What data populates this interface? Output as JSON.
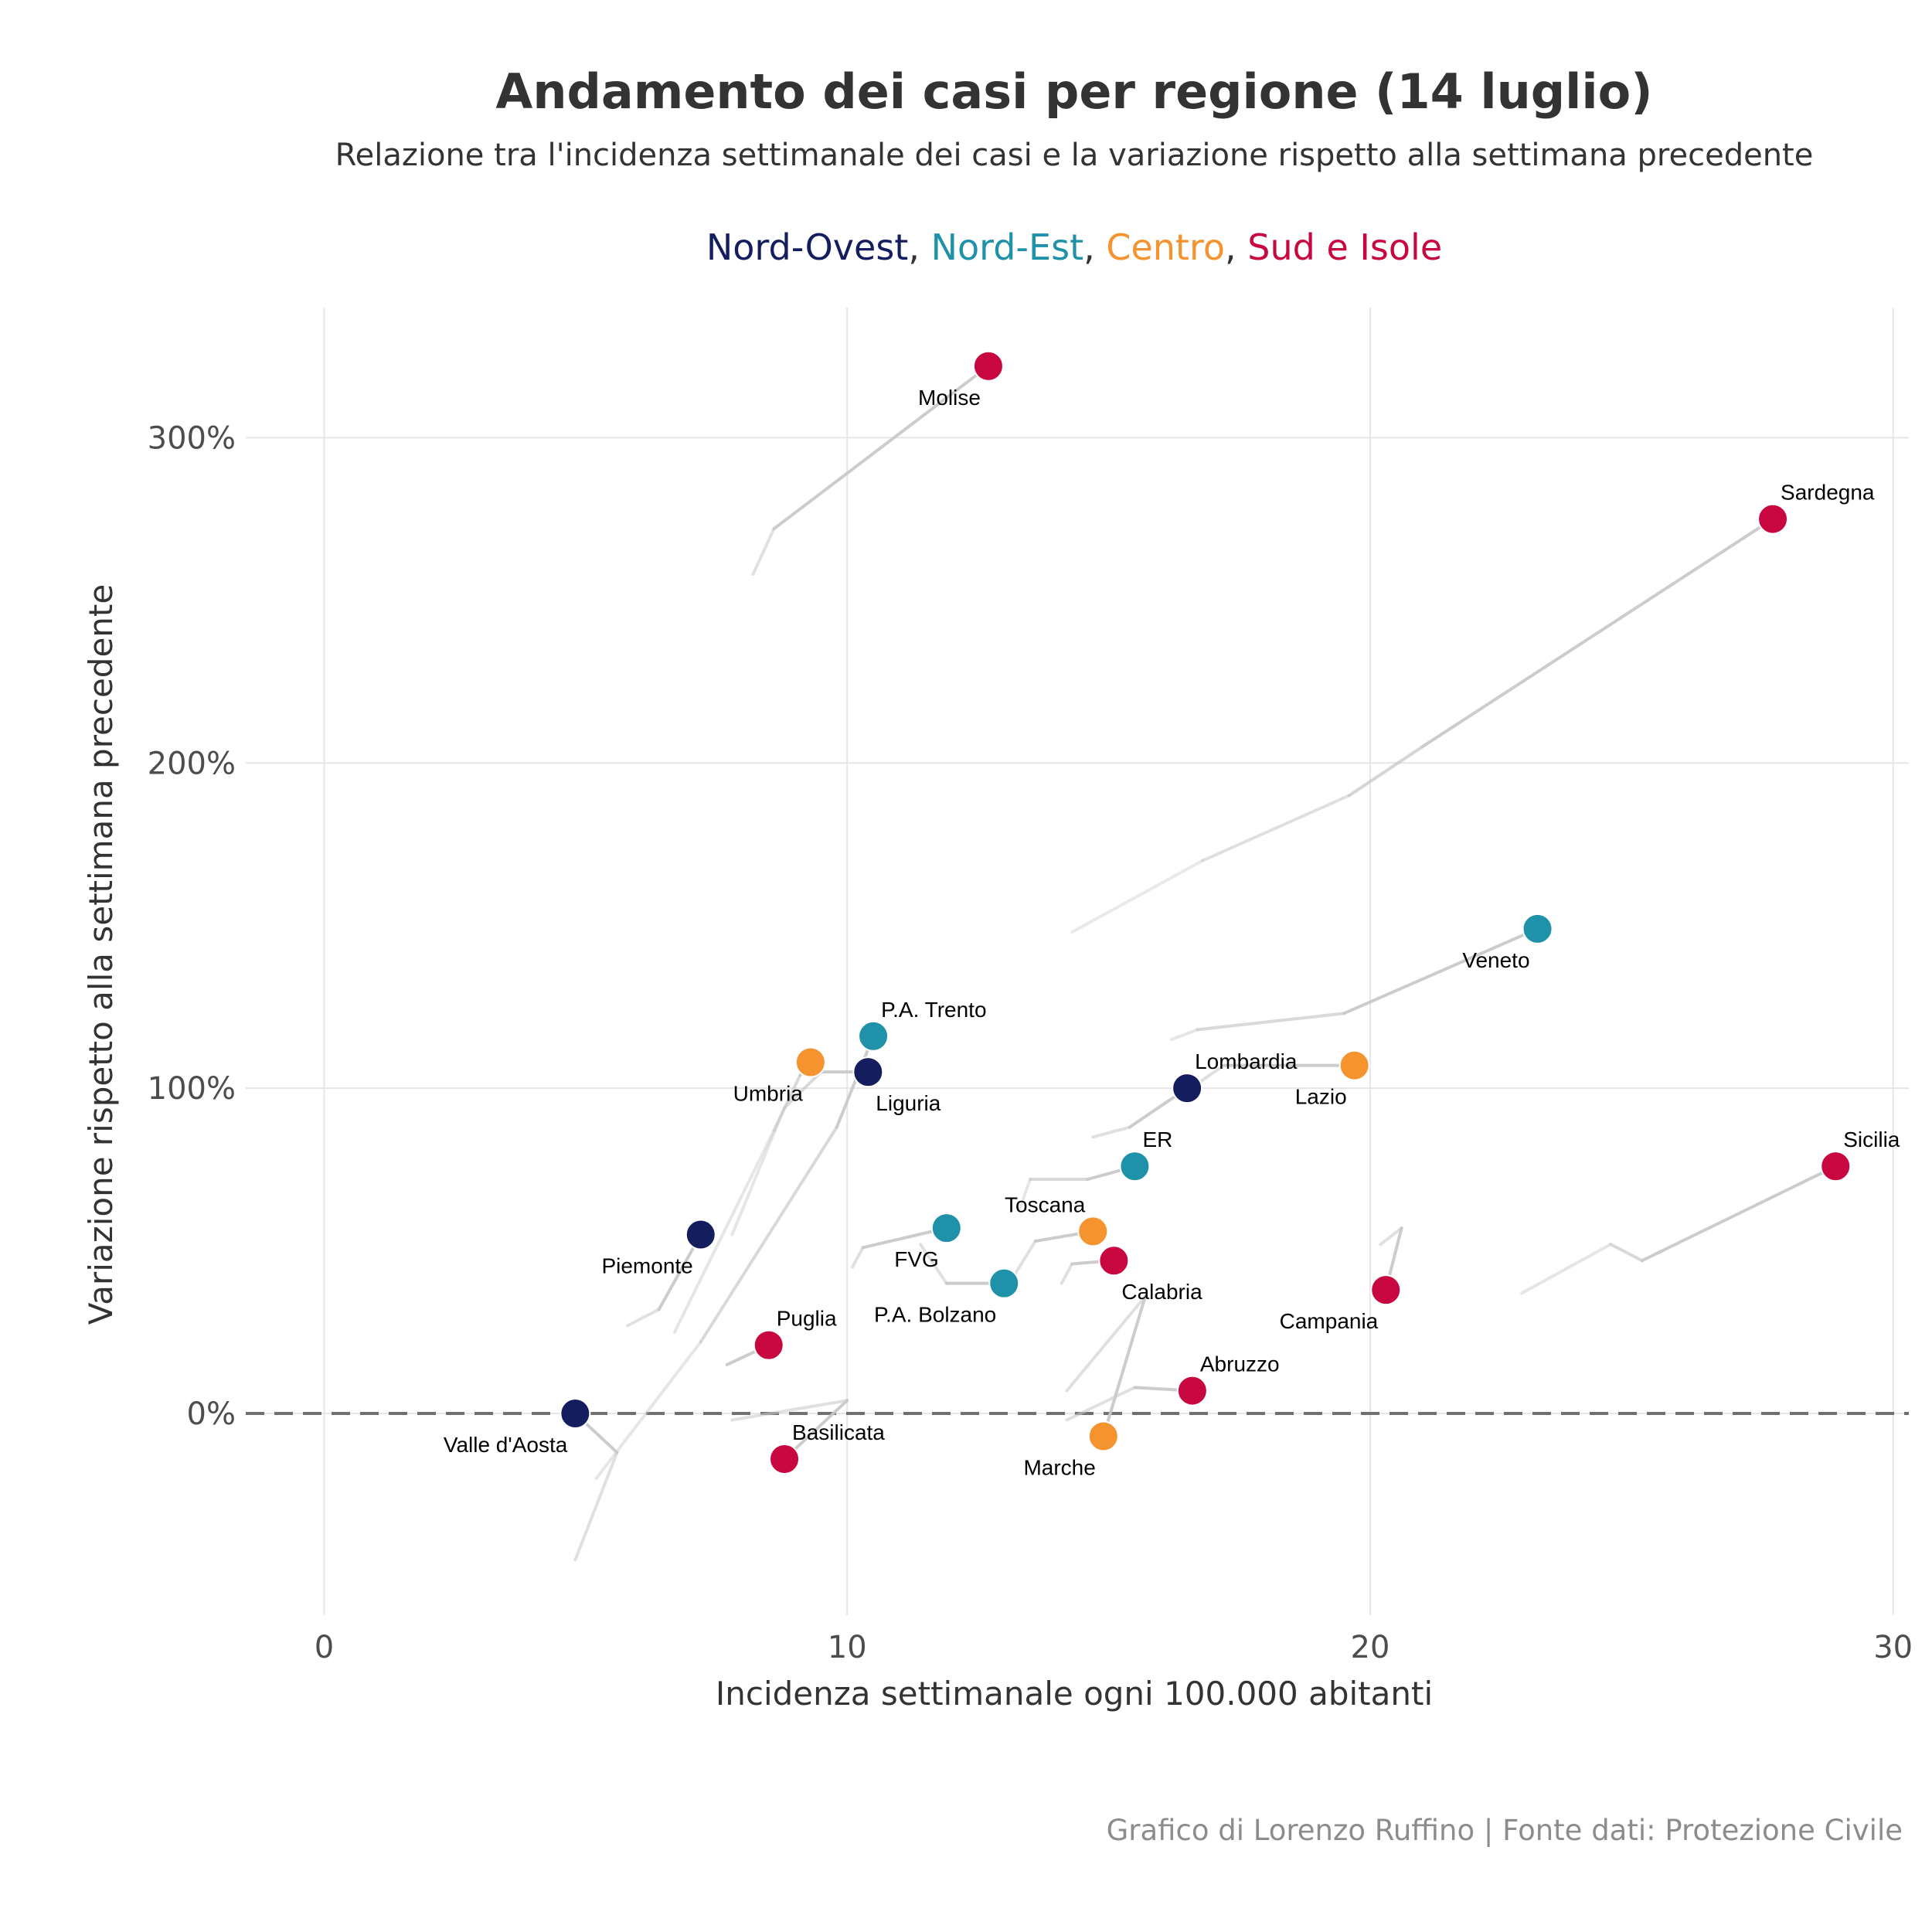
{
  "chart_data": {
    "type": "scatter",
    "title": "Andamento dei casi per regione (14 luglio)",
    "subtitle": "Relazione tra l'incidenza settimanale dei casi e la variazione rispetto alla settimana precedente",
    "legend": {
      "placement": "top",
      "separator": ",",
      "entries": [
        {
          "name": "Nord-Ovest",
          "color": "#141e5e"
        },
        {
          "name": "Nord-Est",
          "color": "#1f91a8"
        },
        {
          "name": "Centro",
          "color": "#f5932e"
        },
        {
          "name": "Sud e Isole",
          "color": "#c8063f"
        }
      ]
    },
    "xlabel": "Incidenza settimanale ogni 100.000 abitanti",
    "ylabel": "Variazione rispetto alla settimana precedente",
    "xlim": [
      -1.5,
      30.3
    ],
    "ylim": [
      -62,
      340
    ],
    "xticks": [
      0,
      10,
      20,
      30
    ],
    "xtick_labels": [
      "0",
      "10",
      "20",
      "30"
    ],
    "yticks": [
      0,
      100,
      200,
      300
    ],
    "ytick_labels": [
      "0%",
      "100%",
      "200%",
      "300%"
    ],
    "grid": true,
    "reference_line": {
      "y": 0,
      "style": "dashed",
      "color": "#707070"
    },
    "caption": "Grafico di Lorenzo Ruffino | Fonte dati: Protezione Civile",
    "points": [
      {
        "name": "Molise",
        "x": 12.7,
        "y": 322,
        "region": "Sud e Isole",
        "label_pos": "below-left"
      },
      {
        "name": "Sardegna",
        "x": 27.7,
        "y": 275,
        "region": "Sud e Isole",
        "label_pos": "above-right"
      },
      {
        "name": "Veneto",
        "x": 23.2,
        "y": 149,
        "region": "Nord-Est",
        "label_pos": "below-left"
      },
      {
        "name": "P.A. Trento",
        "x": 10.5,
        "y": 116,
        "region": "Nord-Est",
        "label_pos": "above-right"
      },
      {
        "name": "Umbria",
        "x": 9.3,
        "y": 108,
        "region": "Centro",
        "label_pos": "below-left"
      },
      {
        "name": "Lazio",
        "x": 19.7,
        "y": 107,
        "region": "Centro",
        "label_pos": "below-left"
      },
      {
        "name": "Liguria",
        "x": 10.4,
        "y": 105,
        "region": "Nord-Ovest",
        "label_pos": "below-right"
      },
      {
        "name": "Lombardia",
        "x": 16.5,
        "y": 100,
        "region": "Nord-Ovest",
        "label_pos": "above-right"
      },
      {
        "name": "Sicilia",
        "x": 28.9,
        "y": 76,
        "region": "Sud e Isole",
        "label_pos": "above-right"
      },
      {
        "name": "ER",
        "x": 15.5,
        "y": 76,
        "region": "Nord-Est",
        "label_pos": "above-right"
      },
      {
        "name": "FVG",
        "x": 11.9,
        "y": 57,
        "region": "Nord-Est",
        "label_pos": "below-left"
      },
      {
        "name": "Piemonte",
        "x": 7.2,
        "y": 55,
        "region": "Nord-Ovest",
        "label_pos": "below-left"
      },
      {
        "name": "Toscana",
        "x": 14.7,
        "y": 56,
        "region": "Centro",
        "label_pos": "above-left"
      },
      {
        "name": "Calabria",
        "x": 15.1,
        "y": 47,
        "region": "Sud e Isole",
        "label_pos": "below-right"
      },
      {
        "name": "P.A. Bolzano",
        "x": 13.0,
        "y": 40,
        "region": "Nord-Est",
        "label_pos": "below-left"
      },
      {
        "name": "Campania",
        "x": 20.3,
        "y": 38,
        "region": "Sud e Isole",
        "label_pos": "below-left"
      },
      {
        "name": "Puglia",
        "x": 8.5,
        "y": 21,
        "region": "Sud e Isole",
        "label_pos": "above-right"
      },
      {
        "name": "Abruzzo",
        "x": 16.6,
        "y": 7,
        "region": "Sud e Isole",
        "label_pos": "above-right"
      },
      {
        "name": "Valle d'Aosta",
        "x": 4.8,
        "y": 0,
        "region": "Nord-Ovest",
        "label_pos": "below-left"
      },
      {
        "name": "Marche",
        "x": 14.9,
        "y": -7,
        "region": "Centro",
        "label_pos": "below-left"
      },
      {
        "name": "Basilicata",
        "x": 8.8,
        "y": -14,
        "region": "Sud e Isole",
        "label_pos": "above-right"
      }
    ],
    "trails": [
      {
        "name": "Molise",
        "points": [
          [
            8.2,
            258
          ],
          [
            8.6,
            272
          ],
          [
            12.7,
            322
          ]
        ]
      },
      {
        "name": "Sardegna",
        "points": [
          [
            14.3,
            148
          ],
          [
            16.8,
            170
          ],
          [
            19.6,
            190
          ],
          [
            21.0,
            205
          ],
          [
            27.7,
            275
          ]
        ]
      },
      {
        "name": "Veneto",
        "points": [
          [
            16.2,
            115
          ],
          [
            16.7,
            118
          ],
          [
            19.5,
            123
          ],
          [
            23.2,
            149
          ]
        ]
      },
      {
        "name": "P.A. Trento",
        "points": [
          [
            5.2,
            -20
          ],
          [
            7.2,
            22
          ],
          [
            9.8,
            88
          ],
          [
            10.5,
            116
          ]
        ]
      },
      {
        "name": "Umbria",
        "points": [
          [
            6.7,
            25
          ],
          [
            8.6,
            87
          ],
          [
            9.1,
            104
          ],
          [
            9.3,
            108
          ]
        ]
      },
      {
        "name": "Lazio",
        "points": [
          [
            16.3,
            97
          ],
          [
            17.2,
            107
          ],
          [
            19.7,
            107
          ]
        ]
      },
      {
        "name": "Liguria",
        "points": [
          [
            7.8,
            55
          ],
          [
            8.8,
            94
          ],
          [
            9.5,
            105
          ],
          [
            10.4,
            105
          ]
        ]
      },
      {
        "name": "Lombardia",
        "points": [
          [
            14.7,
            85
          ],
          [
            15.4,
            88
          ],
          [
            16.5,
            100
          ]
        ]
      },
      {
        "name": "Sicilia",
        "points": [
          [
            22.9,
            37
          ],
          [
            24.6,
            52
          ],
          [
            25.2,
            47
          ],
          [
            28.9,
            76
          ]
        ]
      },
      {
        "name": "ER",
        "points": [
          [
            13.3,
            63
          ],
          [
            13.5,
            72
          ],
          [
            14.6,
            72
          ],
          [
            15.5,
            76
          ]
        ]
      },
      {
        "name": "FVG",
        "points": [
          [
            10.1,
            45
          ],
          [
            10.3,
            51
          ],
          [
            11.9,
            57
          ]
        ]
      },
      {
        "name": "Piemonte",
        "points": [
          [
            5.8,
            27
          ],
          [
            6.4,
            32
          ],
          [
            7.2,
            55
          ]
        ]
      },
      {
        "name": "Toscana",
        "points": [
          [
            13.1,
            40
          ],
          [
            13.6,
            53
          ],
          [
            14.7,
            56
          ]
        ]
      },
      {
        "name": "Calabria",
        "points": [
          [
            14.1,
            40
          ],
          [
            14.3,
            46
          ],
          [
            15.1,
            47
          ]
        ]
      },
      {
        "name": "P.A. Bolzano",
        "points": [
          [
            11.4,
            52
          ],
          [
            11.9,
            40
          ],
          [
            13.0,
            40
          ]
        ]
      },
      {
        "name": "Campania",
        "points": [
          [
            20.2,
            52
          ],
          [
            20.6,
            57
          ],
          [
            20.3,
            38
          ]
        ]
      },
      {
        "name": "Puglia",
        "points": [
          [
            7.7,
            15
          ],
          [
            8.5,
            21
          ]
        ]
      },
      {
        "name": "Abruzzo",
        "points": [
          [
            14.2,
            -2
          ],
          [
            15.5,
            8
          ],
          [
            16.6,
            7
          ]
        ]
      },
      {
        "name": "Valle d'Aosta",
        "points": [
          [
            4.8,
            -45
          ],
          [
            5.6,
            -12
          ],
          [
            4.8,
            0
          ]
        ]
      },
      {
        "name": "Marche",
        "points": [
          [
            14.2,
            7
          ],
          [
            15.7,
            36
          ],
          [
            14.9,
            -7
          ]
        ]
      },
      {
        "name": "Basilicata",
        "points": [
          [
            7.8,
            -2
          ],
          [
            10.0,
            4
          ],
          [
            8.8,
            -14
          ]
        ]
      }
    ]
  }
}
